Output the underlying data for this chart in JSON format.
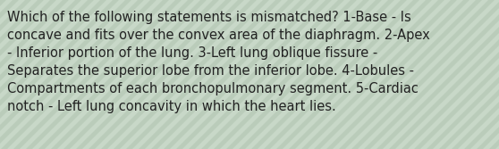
{
  "text": "Which of the following statements is mismatched? 1-Base - Is\nconcave and fits over the convex area of the diaphragm. 2-Apex\n- Inferior portion of the lung. 3-Left lung oblique fissure -\nSeparates the superior lobe from the inferior lobe. 4-Lobules -\nCompartments of each bronchopulmonary segment. 5-Cardiac\nnotch - Left lung concavity in which the heart lies.",
  "bg_color": "#c8d8c8",
  "stripe_light": "#ddeedd",
  "stripe_dark": "#aabfaa",
  "text_color": "#222222",
  "font_size": 10.5,
  "fig_width": 5.58,
  "fig_height": 1.67,
  "dpi": 100
}
